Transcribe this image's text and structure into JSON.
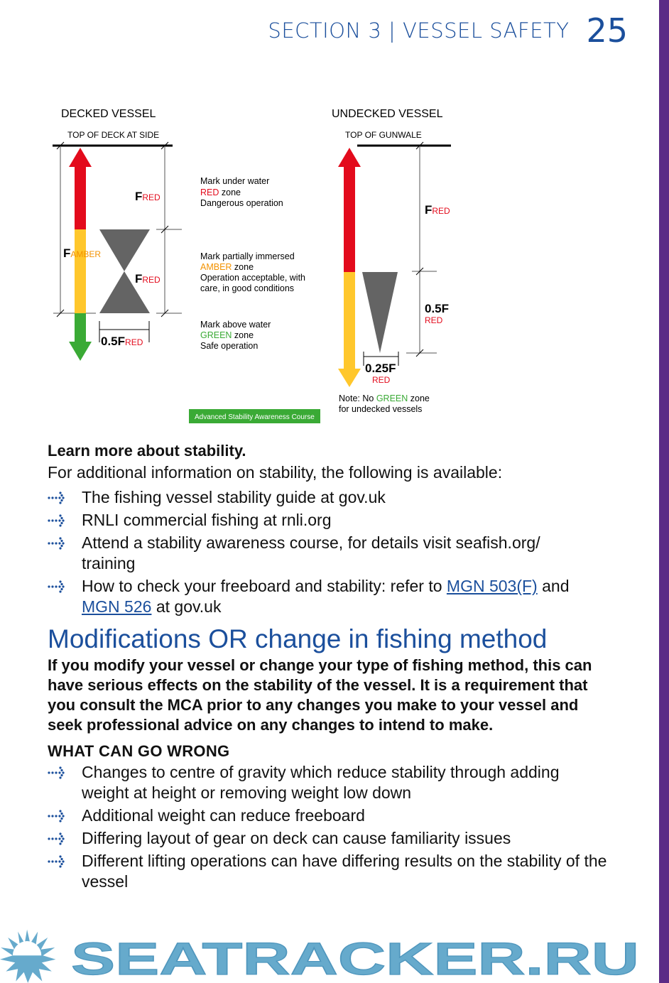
{
  "header": {
    "section": "SECTION 3 | VESSEL SAFETY",
    "page_number": "25"
  },
  "diagram": {
    "decked": {
      "title": "DECKED VESSEL",
      "top_label": "TOP OF DECK AT SIDE",
      "f": "F",
      "red": "RED",
      "amber": "AMBER",
      "half": "0.5F"
    },
    "undecked": {
      "title": "UNDECKED VESSEL",
      "top_label": "TOP OF GUNWALE",
      "f": "F",
      "red": "RED",
      "half": "0.5F",
      "quarter": "0.25F",
      "note_1": "Note: No ",
      "note_green": "GREEN",
      "note_2": " zone",
      "note_3": "for undecked vessels"
    },
    "zones": [
      {
        "line1": "Mark under water",
        "zone": "RED",
        "zone_suffix": " zone",
        "line3": "Dangerous operation",
        "line4": ""
      },
      {
        "line1": "Mark partially immersed",
        "zone": "AMBER",
        "zone_suffix": " zone",
        "line3": "Operation acceptable, with",
        "line4": "care, in good conditions"
      },
      {
        "line1": "Mark above water",
        "zone": "GREEN",
        "zone_suffix": " zone",
        "line3": "Safe operation",
        "line4": ""
      }
    ],
    "badge": "Advanced Stability Awareness Course",
    "colors": {
      "red": "#e30b1c",
      "amber": "#ffc72c",
      "green": "#3aaa35",
      "grey": "#646464"
    }
  },
  "learn": {
    "heading": "Learn more about stability.",
    "intro": "For additional information on stability, the following is available:",
    "items": [
      {
        "text": "The fishing vessel stability guide at gov.uk"
      },
      {
        "text": "RNLI commercial fishing at rnli.org"
      },
      {
        "text": "Attend a stability awareness course, for details visit seafish.org/ training"
      },
      {
        "pre": "How to check your freeboard and stability: refer to ",
        "link1": "MGN 503(F)",
        "mid": " and ",
        "link2": "MGN 526",
        "post": " at gov.uk"
      }
    ]
  },
  "modifications": {
    "title": "Modifications OR change in fishing method",
    "intro": "If you modify your vessel or change your type of fishing method, this can have serious effects on the stability of the vessel. It is a requirement that you consult the MCA prior to any changes you make to your vessel and seek professional advice on any changes to intend to make.",
    "subheading": "WHAT CAN GO WRONG",
    "items": [
      "Changes to centre of gravity which reduce stability through adding weight at height or removing weight low down",
      "Additional weight can reduce freeboard",
      "Differing layout of gear on deck can cause familiarity issues",
      "Different lifting operations can have differing results on the stability of the vessel"
    ]
  },
  "watermark": "SEATRACKER.RU",
  "accent_color": "#1b4f9c"
}
